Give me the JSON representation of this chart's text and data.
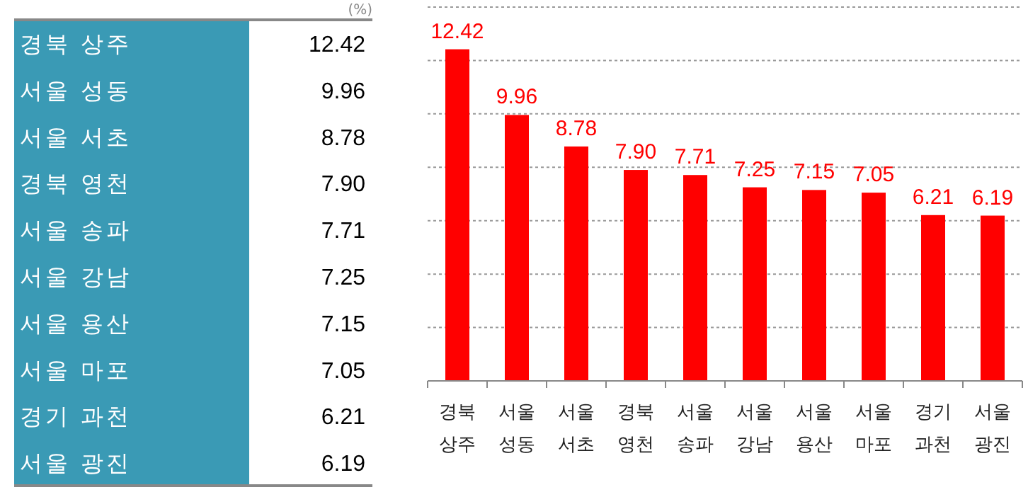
{
  "chart_data": {
    "type": "bar",
    "categories": [
      "경북 상주",
      "서울 성동",
      "서울 서초",
      "경북 영천",
      "서울 송파",
      "서울 강남",
      "서울 용산",
      "서울 마포",
      "경기 과천",
      "서울 광진"
    ],
    "values": [
      12.42,
      9.96,
      8.78,
      7.9,
      7.71,
      7.25,
      7.15,
      7.05,
      6.21,
      6.19
    ],
    "value_labels": [
      "12.42",
      "9.96",
      "8.78",
      "7.90",
      "7.71",
      "7.25",
      "7.15",
      "7.05",
      "6.21",
      "6.19"
    ],
    "color": "#ff0000",
    "ylim": [
      0,
      14
    ],
    "yticks": [
      {
        "value": 0,
        "label": null
      },
      {
        "value": 2,
        "label": null
      },
      {
        "value": 4,
        "label": null
      },
      {
        "value": 6,
        "label": null
      },
      {
        "value": 8,
        "label": null
      },
      {
        "value": 10,
        "label": null
      },
      {
        "value": 12,
        "label": null
      },
      {
        "value": 14,
        "label": null
      }
    ],
    "grid": "y",
    "tick_labels": "x",
    "data_labels": true,
    "annotations": [
      "(%)"
    ]
  }
}
